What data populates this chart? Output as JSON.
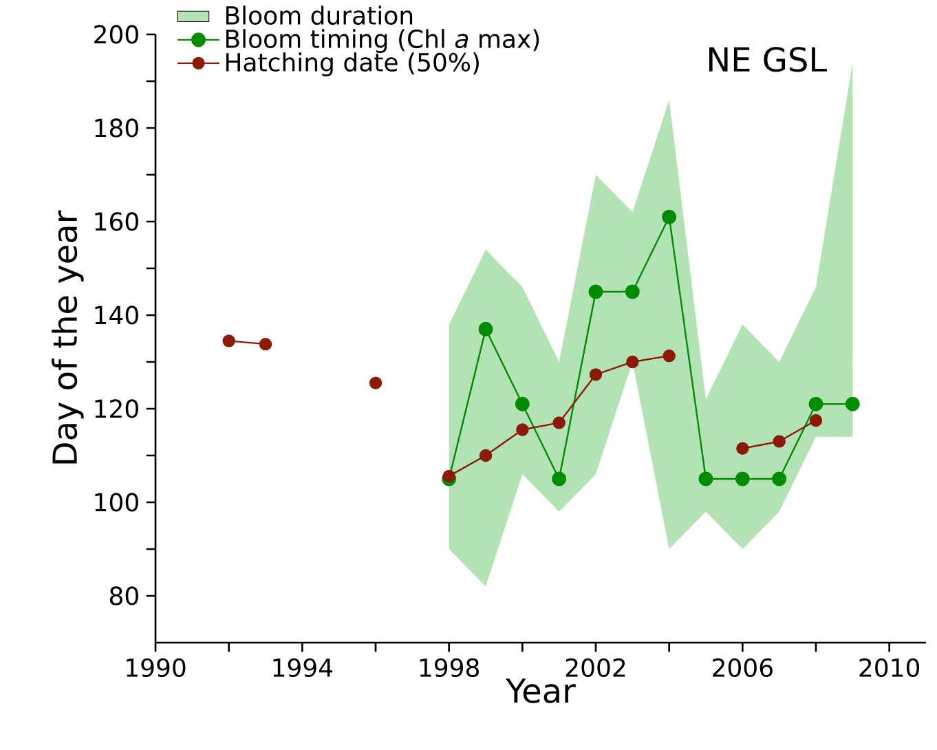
{
  "chart_data": {
    "type": "line",
    "title": "NE GSL",
    "xlabel": "Year",
    "ylabel": "Day of the year",
    "x": [
      1992,
      1993,
      1994,
      1995,
      1996,
      1997,
      1998,
      1999,
      2000,
      2001,
      2002,
      2003,
      2004,
      2005,
      2006,
      2007,
      2008,
      2009
    ],
    "series": [
      {
        "name": "Bloom duration",
        "type": "area",
        "marker": "none",
        "color": "#b3e3b5",
        "values": [
          null,
          null,
          null,
          null,
          null,
          null,
          null,
          null,
          null,
          null,
          null,
          null,
          null,
          null,
          null,
          null,
          null,
          null
        ],
        "upper": [
          null,
          null,
          null,
          null,
          null,
          null,
          138,
          154,
          146,
          130,
          170,
          162,
          186,
          122,
          138,
          130,
          146,
          194
        ],
        "lower": [
          null,
          null,
          null,
          null,
          null,
          null,
          90,
          82,
          106,
          98,
          106,
          130,
          90,
          98,
          90,
          98,
          114,
          114
        ]
      },
      {
        "name": "Bloom timing (Chl *a* max)",
        "type": "line",
        "color": "#008c00",
        "values": [
          null,
          null,
          null,
          null,
          null,
          null,
          105,
          137,
          121,
          105,
          145,
          145,
          161,
          105,
          105,
          105,
          121,
          121
        ]
      },
      {
        "name": "Hatching date (50%)",
        "type": "line",
        "color": "#8b1a08",
        "values": [
          134.5,
          133.8,
          null,
          null,
          125.5,
          null,
          105.6,
          110,
          115.5,
          117,
          127.3,
          130,
          131.3,
          null,
          111.5,
          113,
          117.5,
          null
        ]
      }
    ],
    "xlim": [
      1990,
      2011
    ],
    "ylim": [
      70,
      200
    ],
    "xticks": [
      1990,
      {
        "value": 1992,
        "label": null
      },
      1994,
      {
        "value": 1996,
        "label": null
      },
      1998,
      {
        "value": 2000,
        "label": null
      },
      2002,
      {
        "value": 2004,
        "label": null
      },
      2006,
      {
        "value": 2008,
        "label": null
      },
      2010
    ],
    "yticks": [
      80,
      {
        "value": 90,
        "label": null
      },
      100,
      {
        "value": 110,
        "label": null
      },
      120,
      {
        "value": 130,
        "label": null
      },
      140,
      {
        "value": 150,
        "label": null
      },
      160,
      {
        "value": 170,
        "label": null
      },
      180,
      {
        "value": 190,
        "label": null
      },
      200
    ],
    "marker": "circle",
    "line_style": "solid",
    "legend": "top left",
    "grid": false
  }
}
